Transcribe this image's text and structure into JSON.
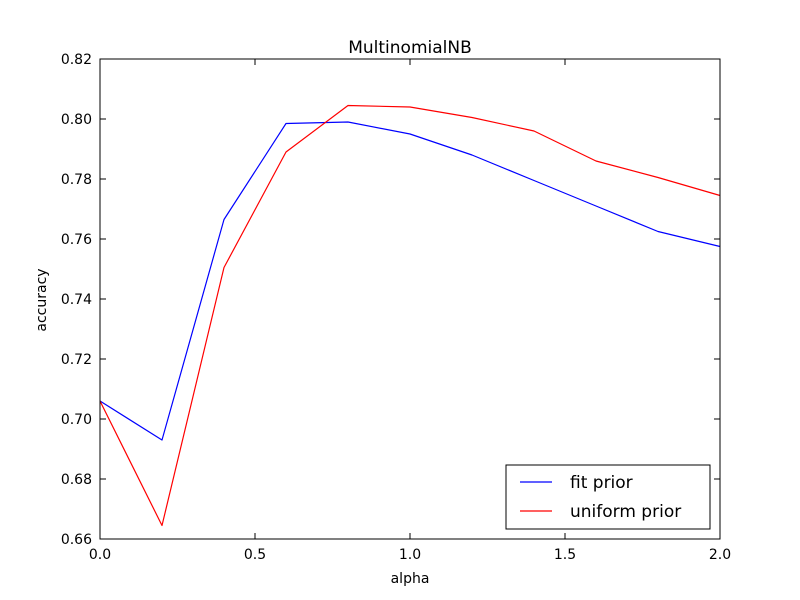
{
  "chart_data": {
    "type": "line",
    "title": "MultinomialNB",
    "xlabel": "alpha",
    "ylabel": "accuracy",
    "xlim": [
      0.0,
      2.0
    ],
    "ylim": [
      0.66,
      0.82
    ],
    "xticks": [
      0.0,
      0.5,
      1.0,
      1.5,
      2.0
    ],
    "xtick_labels": [
      "0.0",
      "0.5",
      "1.0",
      "1.5",
      "2.0"
    ],
    "yticks": [
      0.66,
      0.68,
      0.7,
      0.72,
      0.74,
      0.76,
      0.78,
      0.8,
      0.82
    ],
    "ytick_labels": [
      "0.66",
      "0.68",
      "0.70",
      "0.72",
      "0.74",
      "0.76",
      "0.78",
      "0.80",
      "0.82"
    ],
    "grid": false,
    "legend": "lower-right",
    "x": [
      0.0,
      0.2,
      0.4,
      0.6,
      0.8,
      1.0,
      1.2,
      1.4,
      1.6,
      1.8,
      2.0
    ],
    "series": [
      {
        "name": "fit prior",
        "color": "#0000ff",
        "values": [
          0.706,
          0.693,
          0.7665,
          0.7985,
          0.799,
          0.795,
          0.788,
          0.7795,
          0.771,
          0.7625,
          0.7575
        ]
      },
      {
        "name": "uniform prior",
        "color": "#ff0000",
        "values": [
          0.706,
          0.6645,
          0.7505,
          0.789,
          0.8045,
          0.804,
          0.8005,
          0.796,
          0.786,
          0.7805,
          0.7745
        ]
      }
    ]
  }
}
